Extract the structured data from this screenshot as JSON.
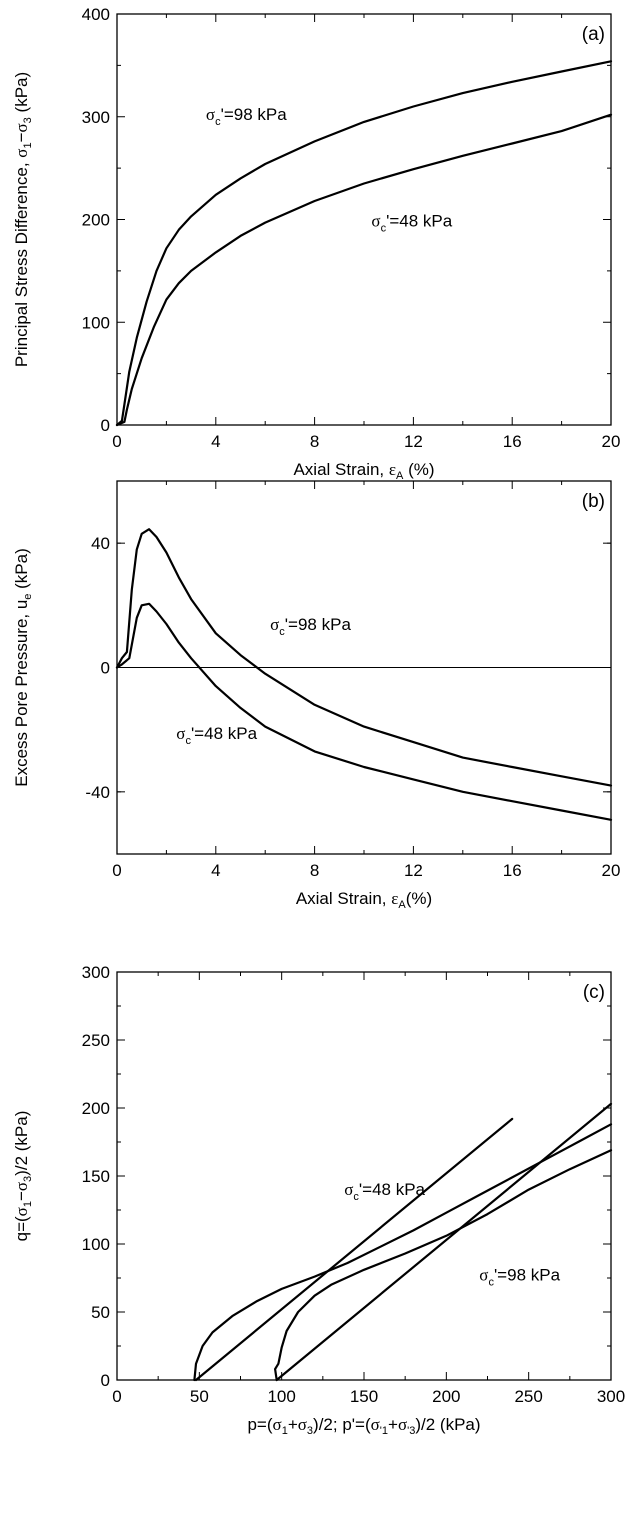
{
  "chart_data": [
    {
      "id": "a",
      "type": "line",
      "panel_label": "(a)",
      "xlabel": {
        "main": "Axial Strain, ",
        "sym": "ε",
        "sub": "A",
        "tail": " (%)"
      },
      "ylabel": {
        "p1": "Principal Stress Difference, ",
        "s1": "σ",
        "sub1": "1",
        "dash": "−",
        "s2": "σ",
        "sub2": "3",
        "tail": " (kPa)"
      },
      "xlim": [
        0,
        20
      ],
      "ylim": [
        0,
        400
      ],
      "xticks": [
        0,
        4,
        8,
        12,
        16,
        20
      ],
      "yticks": [
        0,
        100,
        200,
        300,
        400
      ],
      "xtick_labels": [
        "0",
        "4",
        "8",
        "12",
        "16",
        "20"
      ],
      "ytick_labels": [
        "0",
        "100",
        "200",
        "300",
        "400"
      ],
      "series": [
        {
          "points": [
            [
              0,
              0
            ],
            [
              0.2,
              4
            ],
            [
              0.3,
              20
            ],
            [
              0.5,
              52
            ],
            [
              0.8,
              85
            ],
            [
              1.2,
              120
            ],
            [
              1.6,
              150
            ],
            [
              2.0,
              172
            ],
            [
              2.5,
              190
            ],
            [
              3,
              203
            ],
            [
              4,
              224
            ],
            [
              5,
              240
            ],
            [
              6,
              254
            ],
            [
              8,
              276
            ],
            [
              10,
              295
            ],
            [
              12,
              310
            ],
            [
              14,
              323
            ],
            [
              16,
              334
            ],
            [
              18,
              344
            ],
            [
              20,
              354
            ]
          ]
        },
        {
          "points": [
            [
              0,
              0
            ],
            [
              0.3,
              3
            ],
            [
              0.4,
              15
            ],
            [
              0.6,
              35
            ],
            [
              1.0,
              65
            ],
            [
              1.5,
              96
            ],
            [
              2.0,
              122
            ],
            [
              2.5,
              138
            ],
            [
              3,
              150
            ],
            [
              4,
              168
            ],
            [
              5,
              184
            ],
            [
              6,
              197
            ],
            [
              8,
              218
            ],
            [
              10,
              235
            ],
            [
              12,
              249
            ],
            [
              14,
              262
            ],
            [
              16,
              274
            ],
            [
              18,
              286
            ],
            [
              20,
              302
            ]
          ]
        }
      ],
      "annotations": [
        {
          "pre": "σ",
          "sub": "c",
          "post": "'=98 kPa",
          "x": 3.6,
          "y": 297
        },
        {
          "pre": "σ",
          "sub": "c",
          "post": "'=48 kPa",
          "x": 10.3,
          "y": 193
        }
      ]
    },
    {
      "id": "b",
      "type": "line",
      "panel_label": "(b)",
      "xlabel": {
        "main": "Axial Strain, ",
        "sym": "ε",
        "sub": "A",
        "tail": "(%)"
      },
      "ylabel": {
        "p1": "Excess Pore Pressure, u",
        "sub1": "e",
        "tail": " (kPa)"
      },
      "xlim": [
        0,
        20
      ],
      "ylim": [
        -60,
        60
      ],
      "xticks": [
        0,
        4,
        8,
        12,
        16,
        20
      ],
      "yticks": [
        -40,
        0,
        40
      ],
      "xtick_labels": [
        "0",
        "4",
        "8",
        "12",
        "16",
        "20"
      ],
      "ytick_labels": [
        "-40",
        "0",
        "40"
      ],
      "zero_line": true,
      "series": [
        {
          "points": [
            [
              0,
              0
            ],
            [
              0.2,
              3
            ],
            [
              0.4,
              5
            ],
            [
              0.6,
              25
            ],
            [
              0.8,
              38
            ],
            [
              1.0,
              43
            ],
            [
              1.3,
              44.5
            ],
            [
              1.6,
              42
            ],
            [
              2,
              37
            ],
            [
              2.5,
              29
            ],
            [
              3,
              22
            ],
            [
              4,
              11
            ],
            [
              5,
              4
            ],
            [
              6,
              -2
            ],
            [
              8,
              -12
            ],
            [
              10,
              -19
            ],
            [
              12,
              -24
            ],
            [
              14,
              -29
            ],
            [
              16,
              -32
            ],
            [
              18,
              -35
            ],
            [
              20,
              -38
            ]
          ]
        },
        {
          "points": [
            [
              0,
              0
            ],
            [
              0.2,
              1
            ],
            [
              0.5,
              3
            ],
            [
              0.8,
              16
            ],
            [
              1.0,
              20
            ],
            [
              1.3,
              20.5
            ],
            [
              1.6,
              18
            ],
            [
              2,
              14
            ],
            [
              2.5,
              8
            ],
            [
              3,
              3
            ],
            [
              4,
              -6
            ],
            [
              5,
              -13
            ],
            [
              6,
              -19
            ],
            [
              8,
              -27
            ],
            [
              10,
              -32
            ],
            [
              12,
              -36
            ],
            [
              14,
              -40
            ],
            [
              16,
              -43
            ],
            [
              18,
              -46
            ],
            [
              20,
              -49
            ]
          ]
        }
      ],
      "annotations": [
        {
          "pre": "σ",
          "sub": "c",
          "post": "'=98 kPa",
          "x": 6.2,
          "y": 12
        },
        {
          "pre": "σ",
          "sub": "c",
          "post": "'=48 kPa",
          "x": 2.4,
          "y": -23
        }
      ]
    },
    {
      "id": "c",
      "type": "line",
      "panel_label": "(c)",
      "xlabel": {
        "p1": "p=(",
        "s1": "σ",
        "sub1": "1",
        "plus": "+",
        "s2": "σ",
        "sub2": "3",
        "mid": ")/2; p'=(",
        "s3": "σ",
        "sub3": "'1",
        "plus2": "+",
        "s4": "σ",
        "sub4": "'3",
        "tail": ")/2 (kPa)"
      },
      "ylabel": {
        "p1": "q=(",
        "s1": "σ",
        "sub1": "1",
        "dash": "−",
        "s2": "σ",
        "sub2": "3",
        "tail": ")/2  (kPa)"
      },
      "xlim": [
        0,
        300
      ],
      "ylim": [
        0,
        300
      ],
      "xticks": [
        0,
        50,
        100,
        150,
        200,
        250,
        300
      ],
      "yticks": [
        0,
        50,
        100,
        150,
        200,
        250,
        300
      ],
      "xtick_labels": [
        "0",
        "50",
        "100",
        "150",
        "200",
        "250",
        "300"
      ],
      "ytick_labels": [
        "0",
        "50",
        "100",
        "150",
        "200",
        "250",
        "300"
      ],
      "series": [
        {
          "points": [
            [
              48,
              0
            ],
            [
              240,
              192
            ]
          ]
        },
        {
          "points": [
            [
              97,
              0
            ],
            [
              300,
              203
            ]
          ]
        },
        {
          "points": [
            [
              47,
              0
            ],
            [
              48,
              12
            ],
            [
              52,
              25
            ],
            [
              58,
              35
            ],
            [
              70,
              47
            ],
            [
              85,
              58
            ],
            [
              100,
              67
            ],
            [
              120,
              76
            ],
            [
              140,
              86
            ],
            [
              160,
              98
            ],
            [
              180,
              110
            ],
            [
              200,
              123
            ],
            [
              220,
              136
            ],
            [
              240,
              149
            ],
            [
              260,
              162
            ],
            [
              280,
              175
            ],
            [
              300,
              188
            ]
          ]
        },
        {
          "points": [
            [
              97,
              0
            ],
            [
              96,
              8
            ],
            [
              98,
              12
            ],
            [
              100,
              24
            ],
            [
              103,
              36
            ],
            [
              110,
              50
            ],
            [
              120,
              62
            ],
            [
              130,
              70
            ],
            [
              150,
              81
            ],
            [
              175,
              93
            ],
            [
              200,
              106
            ],
            [
              225,
              122
            ],
            [
              250,
              140
            ],
            [
              275,
              155
            ],
            [
              300,
              169
            ]
          ]
        }
      ],
      "annotations": [
        {
          "pre": "σ",
          "sub": "c",
          "post": "'=48 kPa",
          "x": 138,
          "y": 136
        },
        {
          "pre": "σ",
          "sub": "c",
          "post": "'=98 kPa",
          "x": 220,
          "y": 73
        }
      ]
    }
  ]
}
